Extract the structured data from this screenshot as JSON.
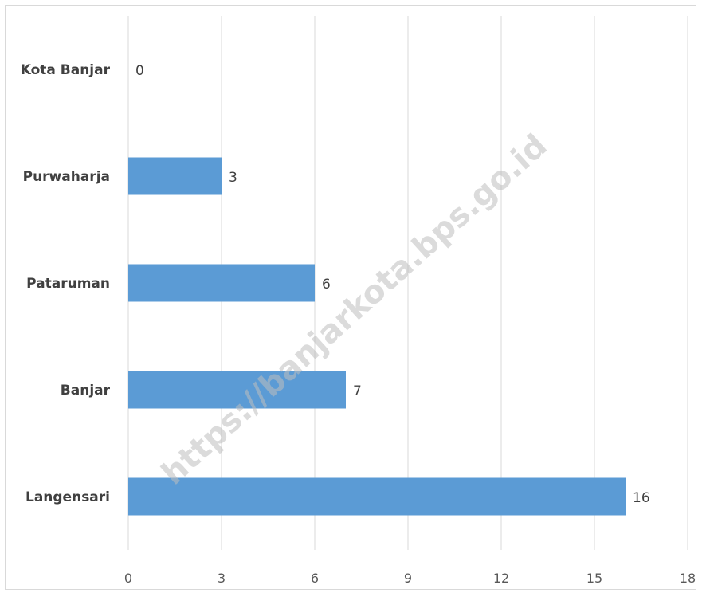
{
  "watermark": "https://banjarkota.bps.go.id",
  "colors": {
    "bar": "#5b9bd5",
    "grid": "#d9d9d9"
  },
  "chart_data": {
    "type": "bar",
    "orientation": "horizontal",
    "categories": [
      "Kota Banjar",
      "Purwaharja",
      "Pataruman",
      "Banjar",
      "Langensari"
    ],
    "values": [
      0,
      3,
      6,
      7,
      16
    ],
    "xticks": [
      0,
      3,
      6,
      9,
      12,
      15,
      18
    ],
    "xlim": [
      0,
      18
    ],
    "grid": true,
    "legend": "none"
  }
}
